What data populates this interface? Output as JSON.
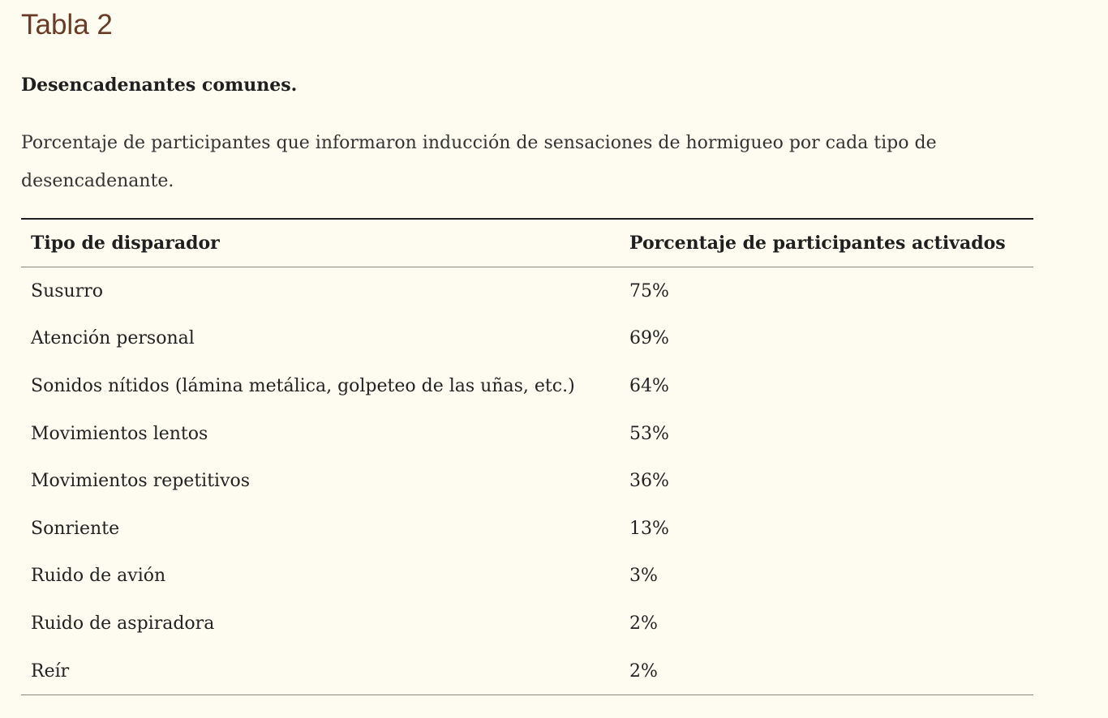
{
  "header": {
    "table_label": "Tabla 2",
    "title": "Desencadenantes comunes.",
    "caption": "Porcentaje de participantes que informaron inducción de sensaciones de hormigueo por cada tipo de desencadenante."
  },
  "table": {
    "columns": [
      "Tipo de disparador",
      "Porcentaje de participantes activados"
    ],
    "rows": [
      {
        "trigger": "Susurro",
        "percent": "75%"
      },
      {
        "trigger": "Atención personal",
        "percent": "69%"
      },
      {
        "trigger": "Sonidos nítidos (lámina metálica, golpeteo de las uñas, etc.)",
        "percent": "64%"
      },
      {
        "trigger": "Movimientos lentos",
        "percent": "53%"
      },
      {
        "trigger": "Movimientos repetitivos",
        "percent": "36%"
      },
      {
        "trigger": "Sonriente",
        "percent": "13%"
      },
      {
        "trigger": "Ruido de avión",
        "percent": "3%"
      },
      {
        "trigger": "Ruido de aspiradora",
        "percent": "2%"
      },
      {
        "trigger": "Reír",
        "percent": "2%"
      }
    ]
  },
  "colors": {
    "background": "#fefcf0",
    "label_brown": "#6b3a24",
    "text": "#1f1f1f"
  }
}
